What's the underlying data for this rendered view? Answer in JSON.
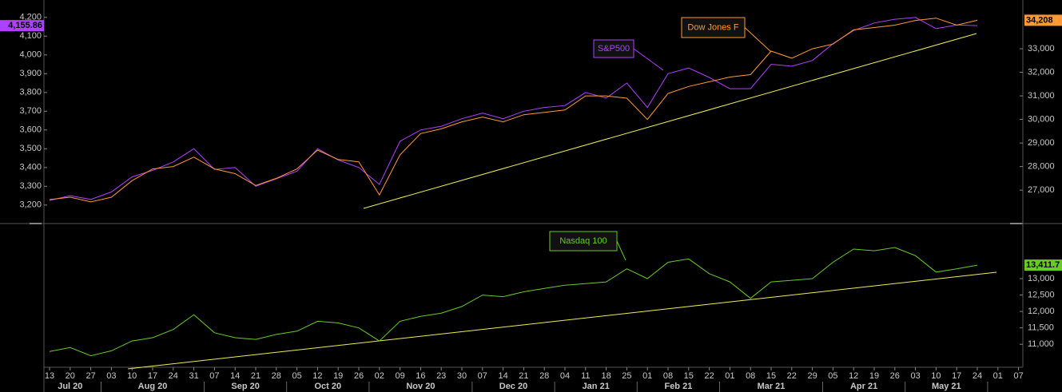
{
  "chart_data": [
    {
      "type": "line",
      "ylim": [
        3110,
        4250
      ],
      "yticks": [
        {
          "value": 3200,
          "label": "3,200"
        },
        {
          "value": 3300,
          "label": "3,300"
        },
        {
          "value": 3400,
          "label": "3,400"
        },
        {
          "value": 3500,
          "label": "3,500"
        },
        {
          "value": 3600,
          "label": "3,600"
        },
        {
          "value": 3700,
          "label": "3,700"
        },
        {
          "value": 3800,
          "label": "3,800"
        },
        {
          "value": 3900,
          "label": "3,900"
        },
        {
          "value": 4000,
          "label": "4,000"
        },
        {
          "value": 4100,
          "label": "4,100"
        },
        {
          "value": 4200,
          "label": "4,200"
        }
      ],
      "y2lim": [
        25650,
        34730
      ],
      "y2ticks": [
        {
          "value": 27000,
          "label": "27,000"
        },
        {
          "value": 28000,
          "label": "28,000"
        },
        {
          "value": 29000,
          "label": "29,000"
        },
        {
          "value": 30000,
          "label": "30,000"
        },
        {
          "value": 31000,
          "label": "31,000"
        },
        {
          "value": 32000,
          "label": "32,000"
        },
        {
          "value": 33000,
          "label": "33,000"
        }
      ],
      "series": [
        {
          "name": "S&P500",
          "color": "#b040ff",
          "values": [
            3225,
            3250,
            3230,
            3270,
            3350,
            3385,
            3430,
            3500,
            3390,
            3400,
            3300,
            3340,
            3380,
            3500,
            3440,
            3400,
            3310,
            3540,
            3600,
            3620,
            3660,
            3690,
            3660,
            3700,
            3720,
            3730,
            3800,
            3770,
            3850,
            3720,
            3900,
            3930,
            3880,
            3820,
            3820,
            3950,
            3940,
            3970,
            4060,
            4130,
            4170,
            4190,
            4200,
            4140,
            4160,
            4155.86,
            null,
            null
          ],
          "value_labels": [
            null,
            null,
            null,
            null,
            null,
            null,
            null,
            null,
            null,
            null,
            null,
            null,
            null,
            null,
            null,
            null,
            null,
            null,
            null,
            null,
            null,
            null,
            null,
            null,
            null,
            null,
            null,
            null,
            null,
            null,
            null,
            null,
            null,
            null,
            null,
            null,
            null,
            null,
            null,
            null,
            null,
            null,
            null,
            null,
            null,
            "4,155.86",
            null,
            null
          ]
        },
        {
          "name": "Dow Jones F",
          "color": "#ff9933",
          "axis": "y2",
          "values": [
            26600,
            26700,
            26500,
            26700,
            27400,
            27900,
            28000,
            28400,
            27900,
            27700,
            27200,
            27500,
            27900,
            28700,
            28300,
            28200,
            26800,
            28500,
            29400,
            29600,
            29900,
            30100,
            29900,
            30200,
            30300,
            30400,
            31000,
            31000,
            30900,
            30000,
            31100,
            31400,
            31600,
            31800,
            31900,
            32900,
            32600,
            33000,
            33200,
            33800,
            33900,
            34000,
            34200,
            34300,
            34000,
            34208,
            null,
            null
          ],
          "value_labels": [
            null,
            null,
            null,
            null,
            null,
            null,
            null,
            null,
            null,
            null,
            null,
            null,
            null,
            null,
            null,
            null,
            null,
            null,
            null,
            null,
            null,
            null,
            null,
            null,
            null,
            null,
            null,
            null,
            null,
            null,
            null,
            null,
            null,
            null,
            null,
            null,
            null,
            null,
            null,
            null,
            null,
            null,
            null,
            null,
            null,
            "34,208",
            null,
            null
          ]
        }
      ]
    },
    {
      "type": "line",
      "ylim": [
        10300,
        14630
      ],
      "yticks": [
        {
          "value": 11000,
          "label": "11,000"
        },
        {
          "value": 11500,
          "label": "11,500"
        },
        {
          "value": 12000,
          "label": "12,000"
        },
        {
          "value": 12500,
          "label": "12,500"
        },
        {
          "value": 13000,
          "label": "13,000"
        }
      ],
      "categories": [
        "13",
        "20",
        "27",
        "03",
        "10",
        "17",
        "24",
        "31",
        "07",
        "14",
        "21",
        "28",
        "05",
        "12",
        "19",
        "26",
        "02",
        "09",
        "16",
        "23",
        "30",
        "07",
        "14",
        "21",
        "28",
        "04",
        "11",
        "18",
        "25",
        "01",
        "08",
        "15",
        "22",
        "01",
        "08",
        "15",
        "22",
        "29",
        "05",
        "12",
        "19",
        "26",
        "03",
        "10",
        "17",
        "24",
        "01",
        "07"
      ],
      "months": [
        "Jul 20",
        "Aug 20",
        "Sep 20",
        "Oct 20",
        "Nov 20",
        "Dec 20",
        "Jan 21",
        "Feb 21",
        "Mar 21",
        "Apr 21",
        "May 21"
      ],
      "series": [
        {
          "name": "Nasdaq 100",
          "color": "#66cc22",
          "values": [
            10780,
            10900,
            10650,
            10800,
            11100,
            11200,
            11450,
            11900,
            11350,
            11200,
            11150,
            11300,
            11400,
            11700,
            11650,
            11500,
            11100,
            11700,
            11850,
            11950,
            12150,
            12500,
            12450,
            12600,
            12700,
            12800,
            12850,
            12900,
            13300,
            13000,
            13500,
            13600,
            13150,
            12900,
            12400,
            12900,
            12950,
            13000,
            13500,
            13900,
            13850,
            13950,
            13700,
            13200,
            13300,
            13411.7,
            null,
            null
          ],
          "value_labels": [
            null,
            null,
            null,
            null,
            null,
            null,
            null,
            null,
            null,
            null,
            null,
            null,
            null,
            null,
            null,
            null,
            null,
            null,
            null,
            null,
            null,
            null,
            null,
            null,
            null,
            null,
            null,
            null,
            null,
            null,
            null,
            null,
            null,
            null,
            null,
            null,
            null,
            null,
            null,
            null,
            null,
            null,
            null,
            null,
            null,
            "13,411.7",
            null,
            null
          ]
        }
      ]
    }
  ]
}
